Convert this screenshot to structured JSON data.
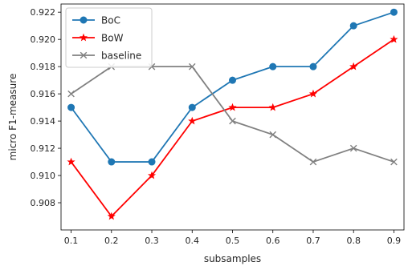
{
  "chart_data": {
    "type": "line",
    "title": "",
    "xlabel": "subsamples",
    "ylabel": "micro F1-measure",
    "x": [
      0.1,
      0.2,
      0.3,
      0.4,
      0.5,
      0.6,
      0.7,
      0.8,
      0.9
    ],
    "x_tick_labels": [
      "0.1",
      "0.2",
      "0.3",
      "0.4",
      "0.5",
      "0.6",
      "0.7",
      "0.8",
      "0.9"
    ],
    "xlim": [
      0.075,
      0.925
    ],
    "ylim": [
      0.906,
      0.9226
    ],
    "y_ticks": [
      0.908,
      0.91,
      0.912,
      0.914,
      0.916,
      0.918,
      0.92,
      0.922
    ],
    "y_tick_labels": [
      "0.908",
      "0.910",
      "0.912",
      "0.914",
      "0.916",
      "0.918",
      "0.920",
      "0.922"
    ],
    "grid": false,
    "legend_position": "top-left",
    "series": [
      {
        "name": "BoC",
        "color": "#1f77b4",
        "marker": "circle",
        "values": [
          0.915,
          0.911,
          0.911,
          0.915,
          0.917,
          0.918,
          0.918,
          0.921,
          0.922
        ]
      },
      {
        "name": "BoW",
        "color": "#ff0000",
        "marker": "star",
        "values": [
          0.911,
          0.907,
          0.91,
          0.914,
          0.915,
          0.915,
          0.916,
          0.918,
          0.92
        ]
      },
      {
        "name": "baseline",
        "color": "#808080",
        "marker": "x",
        "values": [
          0.916,
          0.918,
          0.918,
          0.918,
          0.914,
          0.913,
          0.911,
          0.912,
          0.911
        ]
      }
    ]
  }
}
